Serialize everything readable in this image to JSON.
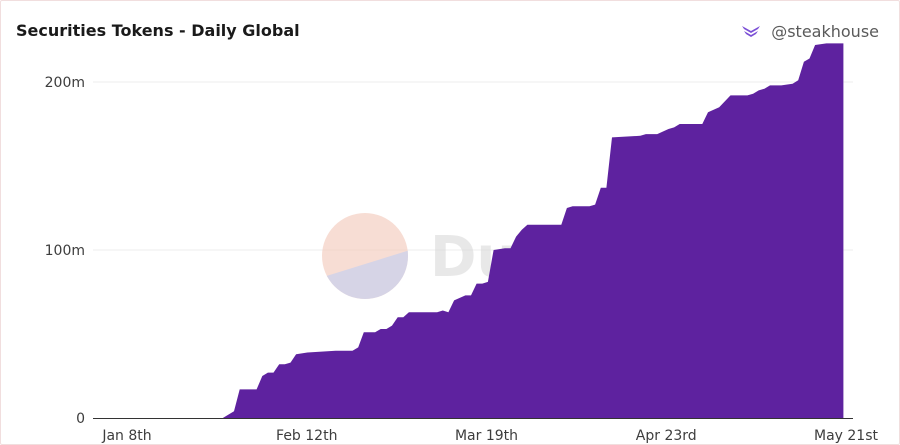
{
  "header": {
    "title": "Securities Tokens - Daily Global",
    "author": "@steakhouse"
  },
  "watermark": {
    "text": "Dune"
  },
  "colors": {
    "area": "#5e229f",
    "grid": "#eeeeee",
    "accent": "#7b4fd6"
  },
  "chart_data": {
    "type": "area",
    "title": "Securities Tokens - Daily Global",
    "xlabel": "",
    "ylabel": "",
    "x_ticks": [
      "Jan 8th",
      "Feb 12th",
      "Mar 19th",
      "Apr 23rd",
      "May 21st"
    ],
    "y_ticks": [
      {
        "value": 0,
        "label": "0"
      },
      {
        "value": 100000000,
        "label": "100m"
      },
      {
        "value": 200000000,
        "label": "200m"
      }
    ],
    "ylim": [
      0,
      225000000
    ],
    "xlim": [
      "2024-01-08",
      "2024-05-21"
    ],
    "grid": true,
    "series": [
      {
        "points": [
          [
            "2024-01-08",
            0
          ],
          [
            "2024-01-31",
            0
          ],
          [
            "2024-02-02",
            4000000
          ],
          [
            "2024-02-03",
            17000000
          ],
          [
            "2024-02-06",
            17000000
          ],
          [
            "2024-02-07",
            25000000
          ],
          [
            "2024-02-08",
            27000000
          ],
          [
            "2024-02-09",
            27000000
          ],
          [
            "2024-02-10",
            32000000
          ],
          [
            "2024-02-11",
            32000000
          ],
          [
            "2024-02-12",
            33000000
          ],
          [
            "2024-02-13",
            38000000
          ],
          [
            "2024-02-15",
            39000000
          ],
          [
            "2024-02-20",
            40000000
          ],
          [
            "2024-02-23",
            40000000
          ],
          [
            "2024-02-24",
            42000000
          ],
          [
            "2024-02-25",
            51000000
          ],
          [
            "2024-02-27",
            51000000
          ],
          [
            "2024-02-28",
            53000000
          ],
          [
            "2024-02-29",
            53000000
          ],
          [
            "2024-03-01",
            55000000
          ],
          [
            "2024-03-02",
            60000000
          ],
          [
            "2024-03-03",
            60000000
          ],
          [
            "2024-03-04",
            63000000
          ],
          [
            "2024-03-09",
            63000000
          ],
          [
            "2024-03-10",
            64000000
          ],
          [
            "2024-03-11",
            63000000
          ],
          [
            "2024-03-12",
            70000000
          ],
          [
            "2024-03-14",
            73000000
          ],
          [
            "2024-03-15",
            73000000
          ],
          [
            "2024-03-16",
            80000000
          ],
          [
            "2024-03-17",
            80000000
          ],
          [
            "2024-03-18",
            81000000
          ],
          [
            "2024-03-19",
            100000000
          ],
          [
            "2024-03-21",
            101000000
          ],
          [
            "2024-03-22",
            101000000
          ],
          [
            "2024-03-23",
            108000000
          ],
          [
            "2024-03-24",
            112000000
          ],
          [
            "2024-03-25",
            115000000
          ],
          [
            "2024-03-31",
            115000000
          ],
          [
            "2024-04-01",
            125000000
          ],
          [
            "2024-04-02",
            126000000
          ],
          [
            "2024-04-05",
            126000000
          ],
          [
            "2024-04-06",
            127000000
          ],
          [
            "2024-04-07",
            137000000
          ],
          [
            "2024-04-08",
            137000000
          ],
          [
            "2024-04-09",
            167000000
          ],
          [
            "2024-04-14",
            168000000
          ],
          [
            "2024-04-15",
            169000000
          ],
          [
            "2024-04-17",
            169000000
          ],
          [
            "2024-04-19",
            172000000
          ],
          [
            "2024-04-20",
            173000000
          ],
          [
            "2024-04-21",
            175000000
          ],
          [
            "2024-04-25",
            175000000
          ],
          [
            "2024-04-26",
            182000000
          ],
          [
            "2024-04-28",
            185000000
          ],
          [
            "2024-04-30",
            192000000
          ],
          [
            "2024-05-03",
            192000000
          ],
          [
            "2024-05-04",
            193000000
          ],
          [
            "2024-05-05",
            195000000
          ],
          [
            "2024-05-06",
            196000000
          ],
          [
            "2024-05-07",
            198000000
          ],
          [
            "2024-05-09",
            198000000
          ],
          [
            "2024-05-11",
            199000000
          ],
          [
            "2024-05-12",
            201000000
          ],
          [
            "2024-05-13",
            212000000
          ],
          [
            "2024-05-14",
            214000000
          ],
          [
            "2024-05-15",
            222000000
          ],
          [
            "2024-05-17",
            223000000
          ],
          [
            "2024-05-20",
            223000000
          ]
        ]
      }
    ]
  }
}
